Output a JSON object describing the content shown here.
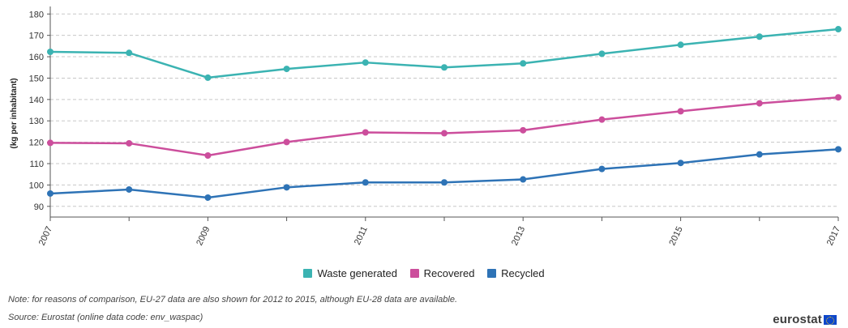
{
  "chart_data": {
    "type": "line",
    "title": "",
    "xlabel": "",
    "ylabel": "(kg per inhabitant)",
    "ylim": [
      85,
      182
    ],
    "x": [
      2007,
      2008,
      2009,
      2010,
      2011,
      2012,
      2013,
      2014,
      2015,
      2016,
      2017
    ],
    "x_tick_labels": [
      "2007",
      "2009",
      "2011",
      "2013",
      "2015",
      "2017"
    ],
    "y_ticks": [
      90,
      100,
      110,
      120,
      130,
      140,
      150,
      160,
      170,
      180
    ],
    "grid": "horizontal dashed",
    "legend_position": "bottom",
    "series": [
      {
        "name": "Waste generated",
        "color": "#3bb3b2",
        "values": [
          162.3,
          161.8,
          150.2,
          154.3,
          157.3,
          155.0,
          156.9,
          161.4,
          165.6,
          169.4,
          172.9
        ]
      },
      {
        "name": "Recovered",
        "color": "#cc4e9c",
        "values": [
          119.7,
          119.5,
          113.8,
          120.1,
          124.6,
          124.2,
          125.6,
          130.6,
          134.5,
          138.2,
          141.0
        ]
      },
      {
        "name": "Recycled",
        "color": "#2e73b6",
        "values": [
          96.0,
          97.9,
          94.1,
          98.9,
          101.2,
          101.2,
          102.6,
          107.5,
          110.3,
          114.3,
          116.7
        ]
      }
    ]
  },
  "footer": {
    "note": "Note: for reasons of comparison, EU-27 data are also shown for 2012 to 2015, although EU-28 data are available.",
    "source": "Source: Eurostat (online data code: env_waspac)",
    "logo_text": "eurostat"
  }
}
